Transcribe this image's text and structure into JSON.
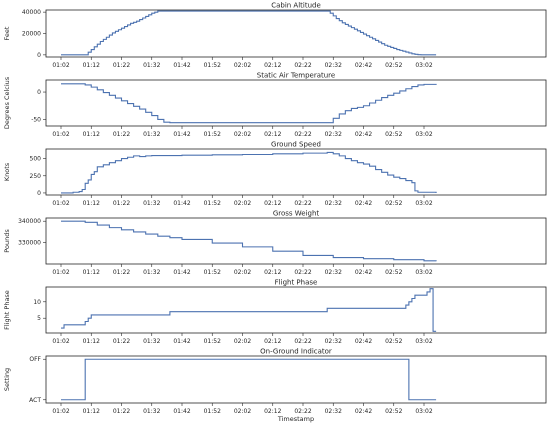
{
  "chart_data": [
    {
      "type": "line",
      "title": "Cabin Altitude",
      "ylabel": "Feet",
      "xlabel": "",
      "ylim": [
        -2000,
        42000
      ],
      "yticks": [
        0,
        20000,
        40000
      ],
      "ytick_labels": [
        "0",
        "20000",
        "40000"
      ],
      "xticks": [
        "01:02",
        "01:12",
        "01:22",
        "01:32",
        "01:42",
        "01:52",
        "02:02",
        "02:12",
        "02:22",
        "02:32",
        "02:42",
        "02:52",
        "03:02"
      ],
      "x_minutes": [
        0,
        8,
        9,
        10,
        11,
        12,
        13,
        14,
        15,
        16,
        17,
        18,
        19,
        20,
        21,
        22,
        23,
        24,
        25,
        26,
        27,
        28,
        29,
        30,
        31,
        32,
        34,
        36,
        88,
        89,
        90,
        91,
        92,
        93,
        94,
        95,
        96,
        97,
        98,
        99,
        100,
        101,
        102,
        103,
        104,
        105,
        106,
        107,
        108,
        109,
        110,
        111,
        112,
        113,
        114,
        115,
        116,
        117,
        118,
        119,
        120,
        124
      ],
      "values": [
        0,
        0,
        2500,
        5000,
        7500,
        10000,
        12500,
        14500,
        16500,
        18500,
        20500,
        22000,
        23500,
        25000,
        26500,
        28000,
        29500,
        30500,
        31500,
        33000,
        34500,
        36000,
        37500,
        39000,
        40000,
        41000,
        41000,
        41000,
        41000,
        39000,
        36500,
        34000,
        32000,
        30000,
        28500,
        27000,
        25500,
        24000,
        22500,
        21000,
        19500,
        18000,
        16500,
        15000,
        13500,
        12000,
        10500,
        9000,
        8000,
        7000,
        6000,
        5000,
        4200,
        3400,
        2600,
        1800,
        1000,
        500,
        200,
        0,
        0,
        0
      ]
    },
    {
      "type": "line",
      "title": "Static Air Temperature",
      "ylabel": "Degrees Celcius",
      "xlabel": "",
      "ylim": [
        -62,
        22
      ],
      "yticks": [
        -50,
        0
      ],
      "ytick_labels": [
        "-50",
        "0"
      ],
      "xticks": [
        "01:02",
        "01:12",
        "01:22",
        "01:32",
        "01:42",
        "01:52",
        "02:02",
        "02:12",
        "02:22",
        "02:32",
        "02:42",
        "02:52",
        "03:02"
      ],
      "x_minutes": [
        0,
        6,
        8,
        10,
        12,
        14,
        16,
        18,
        20,
        22,
        24,
        26,
        28,
        30,
        32,
        34,
        36,
        88,
        90,
        92,
        94,
        96,
        98,
        100,
        102,
        104,
        106,
        108,
        110,
        112,
        114,
        116,
        118,
        120,
        124
      ],
      "values": [
        15,
        15,
        13,
        9,
        4,
        -1,
        -6,
        -11,
        -16,
        -21,
        -26,
        -31,
        -37,
        -43,
        -50,
        -55,
        -56,
        -56,
        -48,
        -40,
        -34,
        -30,
        -28,
        -25,
        -20,
        -15,
        -10,
        -6,
        -2,
        2,
        6,
        10,
        13,
        14,
        15
      ]
    },
    {
      "type": "line",
      "title": "Ground Speed",
      "ylabel": "Knots",
      "xlabel": "",
      "ylim": [
        -30,
        640
      ],
      "yticks": [
        0,
        250,
        500
      ],
      "ytick_labels": [
        "0",
        "250",
        "500"
      ],
      "xticks": [
        "01:02",
        "01:12",
        "01:22",
        "01:32",
        "01:42",
        "01:52",
        "02:02",
        "02:12",
        "02:22",
        "02:32",
        "02:42",
        "02:52",
        "03:02"
      ],
      "x_minutes": [
        0,
        4,
        6,
        7,
        8,
        9,
        10,
        11,
        12,
        14,
        16,
        18,
        20,
        22,
        24,
        26,
        28,
        30,
        34,
        40,
        50,
        60,
        70,
        80,
        88,
        90,
        92,
        94,
        96,
        98,
        100,
        102,
        104,
        106,
        108,
        110,
        112,
        114,
        116,
        117,
        118,
        120,
        124
      ],
      "values": [
        0,
        10,
        20,
        50,
        140,
        190,
        270,
        310,
        380,
        410,
        440,
        470,
        500,
        520,
        540,
        530,
        540,
        545,
        545,
        550,
        555,
        560,
        570,
        580,
        590,
        570,
        540,
        500,
        470,
        440,
        420,
        390,
        340,
        300,
        260,
        230,
        210,
        180,
        150,
        30,
        10,
        10,
        0
      ]
    },
    {
      "type": "line",
      "title": "Gross Weight",
      "ylabel": "Pounds",
      "xlabel": "",
      "ylim": [
        320000,
        341500
      ],
      "yticks": [
        330000,
        340000
      ],
      "ytick_labels": [
        "330000",
        "340000"
      ],
      "xticks": [
        "01:02",
        "01:12",
        "01:22",
        "01:32",
        "01:42",
        "01:52",
        "02:02",
        "02:12",
        "02:22",
        "02:32",
        "02:42",
        "02:52",
        "03:02"
      ],
      "x_minutes": [
        0,
        8,
        12,
        16,
        20,
        24,
        28,
        32,
        36,
        40,
        50,
        60,
        70,
        80,
        90,
        100,
        110,
        120,
        124
      ],
      "values": [
        340000,
        339500,
        338200,
        337000,
        336000,
        335000,
        334000,
        333000,
        332300,
        331500,
        329800,
        328000,
        326000,
        324000,
        323000,
        322500,
        322000,
        321500,
        321300
      ]
    },
    {
      "type": "line",
      "title": "Flight Phase",
      "ylabel": "Flight Phase",
      "xlabel": "",
      "ylim": [
        0.5,
        14.5
      ],
      "yticks": [
        5,
        10
      ],
      "ytick_labels": [
        "5",
        "10"
      ],
      "xticks": [
        "01:02",
        "01:12",
        "01:22",
        "01:32",
        "01:42",
        "01:52",
        "02:02",
        "02:12",
        "02:22",
        "02:32",
        "02:42",
        "02:52",
        "03:02"
      ],
      "x_minutes": [
        0,
        1,
        8,
        9,
        10,
        36,
        88,
        114,
        115,
        116,
        117,
        120,
        121,
        122,
        123,
        124
      ],
      "values": [
        2,
        3,
        4,
        5,
        6,
        7,
        8,
        9,
        10,
        11,
        12,
        12,
        13,
        14,
        1,
        1
      ]
    },
    {
      "type": "line",
      "title": "On-Ground Indicator",
      "ylabel": "Setting",
      "xlabel": "Timestamp",
      "ylim": [
        -0.08,
        1.08
      ],
      "yticks": [
        0,
        1
      ],
      "ytick_labels": [
        "ACT",
        "OFF"
      ],
      "xticks": [
        "01:02",
        "01:12",
        "01:22",
        "01:32",
        "01:42",
        "01:52",
        "02:02",
        "02:12",
        "02:22",
        "02:32",
        "02:42",
        "02:52",
        "03:02"
      ],
      "x_minutes": [
        0,
        8,
        8,
        115,
        115,
        124
      ],
      "values": [
        0,
        0,
        1,
        1,
        0,
        0
      ]
    }
  ]
}
